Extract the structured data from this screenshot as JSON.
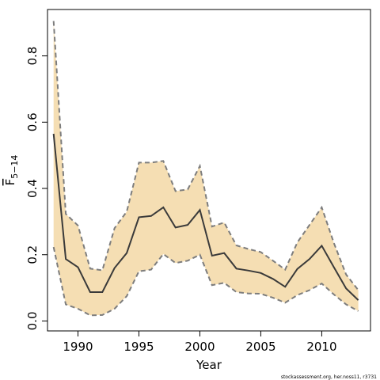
{
  "chart_data": {
    "type": "line",
    "xlabel": "Year",
    "ylabel_main": "F",
    "ylabel_sub": "5−14",
    "xlim": [
      1987.5,
      2014.0
    ],
    "ylim": [
      -0.03,
      0.94
    ],
    "xticks": [
      1990,
      1995,
      2000,
      2005,
      2010
    ],
    "xtick_labels": [
      "1990",
      "1995",
      "2000",
      "2005",
      "2010"
    ],
    "yticks": [
      0.0,
      0.2,
      0.4,
      0.6,
      0.8
    ],
    "ytick_labels": [
      "0.0",
      "0.2",
      "0.4",
      "0.6",
      "0.8"
    ],
    "grid": false,
    "x": [
      1988,
      1989,
      1990,
      1991,
      1992,
      1993,
      1994,
      1995,
      1996,
      1997,
      1998,
      1999,
      2000,
      2001,
      2002,
      2003,
      2004,
      2005,
      2006,
      2007,
      2008,
      2009,
      2010,
      2011,
      2012,
      2013
    ],
    "series": [
      {
        "role": "estimate",
        "values": [
          0.565,
          0.187,
          0.162,
          0.087,
          0.087,
          0.16,
          0.205,
          0.313,
          0.317,
          0.343,
          0.282,
          0.29,
          0.335,
          0.197,
          0.205,
          0.158,
          0.152,
          0.145,
          0.127,
          0.103,
          0.157,
          0.187,
          0.227,
          0.162,
          0.098,
          0.063
        ]
      },
      {
        "role": "upper",
        "values": [
          0.905,
          0.323,
          0.288,
          0.158,
          0.153,
          0.28,
          0.33,
          0.478,
          0.478,
          0.483,
          0.392,
          0.397,
          0.468,
          0.285,
          0.297,
          0.228,
          0.217,
          0.208,
          0.182,
          0.155,
          0.237,
          0.29,
          0.343,
          0.235,
          0.14,
          0.093
        ]
      },
      {
        "role": "lower",
        "values": [
          0.223,
          0.05,
          0.037,
          0.017,
          0.018,
          0.037,
          0.075,
          0.15,
          0.155,
          0.202,
          0.175,
          0.182,
          0.2,
          0.108,
          0.115,
          0.087,
          0.083,
          0.082,
          0.07,
          0.055,
          0.078,
          0.093,
          0.113,
          0.08,
          0.05,
          0.03
        ]
      }
    ],
    "colors": {
      "band": "#f5deb3",
      "estimate": "#3a3a3a",
      "bounds": "#7d7d7d"
    }
  },
  "credit": "stockassessment.org, her.noss11, r3731"
}
